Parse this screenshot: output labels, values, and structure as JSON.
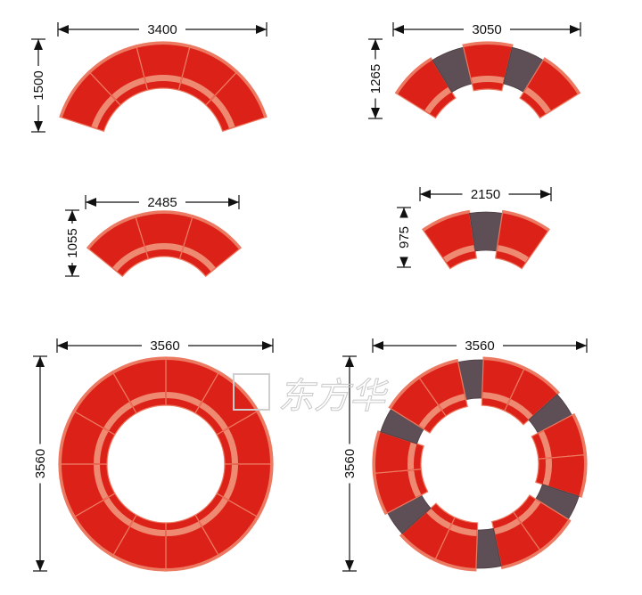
{
  "colors": {
    "seat": "#dc2218",
    "seat_edge": "#ec7a62",
    "band": "#ef8a72",
    "dark_seat": "#5e4e55",
    "dim_line": "#111111"
  },
  "watermark": "东方华",
  "figures": [
    {
      "id": "arc-3400",
      "width_label": "3400",
      "height_label": "1500",
      "segments": [
        "red",
        "red",
        "red",
        "red",
        "red"
      ]
    },
    {
      "id": "arc-3050",
      "width_label": "3050",
      "height_label": "1265",
      "segments": [
        "red",
        "dark",
        "red",
        "dark",
        "red"
      ]
    },
    {
      "id": "arc-2485",
      "width_label": "2485",
      "height_label": "1055",
      "segments": [
        "red",
        "red",
        "red"
      ]
    },
    {
      "id": "arc-2150",
      "width_label": "2150",
      "height_label": "975",
      "segments": [
        "red",
        "dark",
        "red"
      ]
    },
    {
      "id": "ring-red",
      "width_label": "3560",
      "height_label": "3560",
      "segments": [
        "red",
        "red",
        "red",
        "red",
        "red",
        "red",
        "red",
        "red",
        "red",
        "red",
        "red",
        "red"
      ]
    },
    {
      "id": "ring-mixed",
      "width_label": "3560",
      "height_label": "3560",
      "segments": [
        "dark",
        "red",
        "red",
        "dark",
        "red",
        "red",
        "dark",
        "red",
        "red",
        "dark",
        "red",
        "red",
        "dark",
        "red",
        "red",
        "dark",
        "red",
        "red"
      ]
    }
  ]
}
